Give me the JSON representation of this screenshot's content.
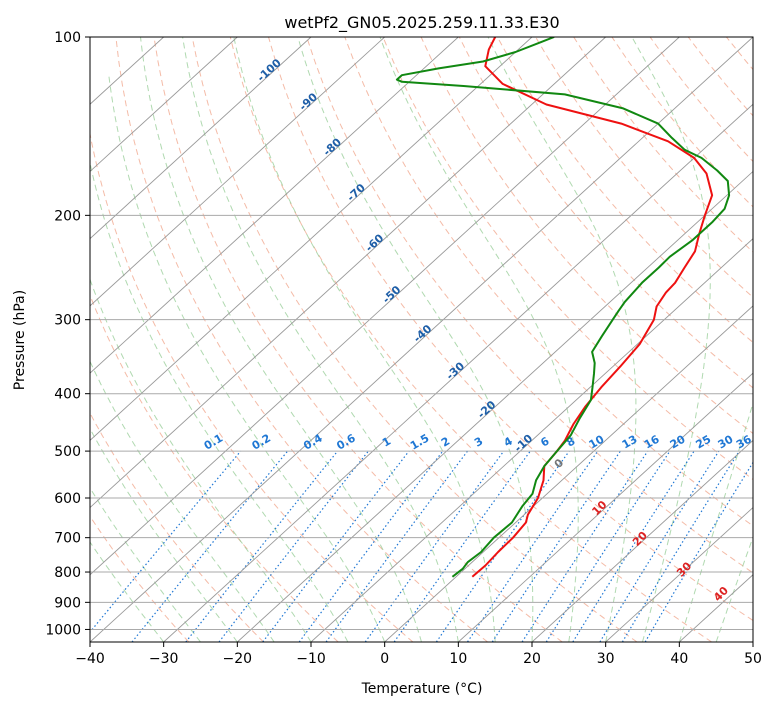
{
  "chart_data": {
    "type": "line",
    "title": "wetPf2_GN05.2025.259.11.33.E30",
    "xlabel": "Temperature (°C)",
    "ylabel": "Pressure (hPa)",
    "xlim": [
      -40,
      50
    ],
    "ylim": [
      1050,
      100
    ],
    "y_scale": "log",
    "grid": true,
    "x_ticks": [
      "−40",
      "−30",
      "−20",
      "−10",
      "0",
      "10",
      "20",
      "30",
      "40",
      "50"
    ],
    "x_tick_values": [
      -40,
      -30,
      -20,
      -10,
      0,
      10,
      20,
      30,
      40,
      50
    ],
    "y_ticks": [
      "100",
      "200",
      "300",
      "400",
      "500",
      "600",
      "700",
      "800",
      "900",
      "1000"
    ],
    "y_tick_values": [
      100,
      200,
      300,
      400,
      500,
      600,
      700,
      800,
      900,
      1000
    ],
    "series": [
      {
        "role": "temperature",
        "color": "#ee1111",
        "points": [
          [
            815,
            2.2
          ],
          [
            780,
            2.3
          ],
          [
            740,
            2.0
          ],
          [
            700,
            1.9
          ],
          [
            660,
            1.4
          ],
          [
            640,
            0.5
          ],
          [
            600,
            -0.6
          ],
          [
            560,
            -2.5
          ],
          [
            530,
            -4.5
          ],
          [
            500,
            -5.0
          ],
          [
            480,
            -5.5
          ],
          [
            450,
            -6.8
          ],
          [
            420,
            -7.8
          ],
          [
            390,
            -8.5
          ],
          [
            360,
            -9.0
          ],
          [
            330,
            -9.7
          ],
          [
            300,
            -11.4
          ],
          [
            285,
            -13.0
          ],
          [
            270,
            -13.8
          ],
          [
            260,
            -14.0
          ],
          [
            245,
            -15.0
          ],
          [
            230,
            -16.0
          ],
          [
            215,
            -18.0
          ],
          [
            200,
            -20.0
          ],
          [
            185,
            -22.0
          ],
          [
            170,
            -26.0
          ],
          [
            160,
            -30.0
          ],
          [
            150,
            -36.0
          ],
          [
            140,
            -45.0
          ],
          [
            130,
            -58.0
          ],
          [
            120,
            -67.0
          ],
          [
            112,
            -72.0
          ],
          [
            105,
            -74.0
          ],
          [
            100,
            -75.0
          ]
        ]
      },
      {
        "role": "dewpoint",
        "color": "#118811",
        "points": [
          [
            815,
            -0.5
          ],
          [
            790,
            -0.3
          ],
          [
            770,
            -0.6
          ],
          [
            740,
            -0.3
          ],
          [
            700,
            -0.7
          ],
          [
            660,
            -0.5
          ],
          [
            620,
            -1.5
          ],
          [
            590,
            -2.0
          ],
          [
            560,
            -3.5
          ],
          [
            530,
            -4.5
          ],
          [
            500,
            -5.0
          ],
          [
            470,
            -5.5
          ],
          [
            440,
            -6.8
          ],
          [
            410,
            -8.0
          ],
          [
            390,
            -9.7
          ],
          [
            370,
            -11.5
          ],
          [
            355,
            -13.0
          ],
          [
            340,
            -15.0
          ],
          [
            320,
            -16.0
          ],
          [
            300,
            -17.0
          ],
          [
            290,
            -17.5
          ],
          [
            280,
            -18.0
          ],
          [
            260,
            -18.5
          ],
          [
            245,
            -18.5
          ],
          [
            235,
            -18.6
          ],
          [
            220,
            -18.0
          ],
          [
            205,
            -18.0
          ],
          [
            195,
            -18.3
          ],
          [
            185,
            -19.7
          ],
          [
            175,
            -22.0
          ],
          [
            168,
            -25.0
          ],
          [
            160,
            -29.0
          ],
          [
            155,
            -32.5
          ],
          [
            148,
            -36.0
          ],
          [
            140,
            -40.0
          ],
          [
            132,
            -47.0
          ],
          [
            125,
            -57.0
          ],
          [
            121,
            -72.0
          ],
          [
            119,
            -81.0
          ],
          [
            118,
            -82.0
          ],
          [
            116,
            -82.0
          ],
          [
            113,
            -78.0
          ],
          [
            110,
            -73.0
          ],
          [
            106,
            -70.0
          ],
          [
            102,
            -68.0
          ],
          [
            100,
            -67.0
          ]
        ]
      }
    ],
    "reference_lines": {
      "isotherm_step": 10,
      "dry_adiabat_step": 10,
      "moist_adiabat_step": 5,
      "isotherm_color": "#999999",
      "dry_adiabat_color": "#f0a48a",
      "moist_adiabat_color": "#8fc98f",
      "mixing_ratio_color": "#1f77d4",
      "edge_curve_color": "#c8ab83"
    },
    "isotherm_labels": [
      {
        "text": "-100",
        "temp": -100,
        "p": 115
      },
      {
        "text": "-90",
        "temp": -90,
        "p": 130
      },
      {
        "text": "-80",
        "temp": -80,
        "p": 155
      },
      {
        "text": "-70",
        "temp": -70,
        "p": 185
      },
      {
        "text": "-60",
        "temp": -60,
        "p": 225
      },
      {
        "text": "-50",
        "temp": -50,
        "p": 275
      },
      {
        "text": "-40",
        "temp": -40,
        "p": 320
      },
      {
        "text": "-30",
        "temp": -30,
        "p": 370
      },
      {
        "text": "-20",
        "temp": -20,
        "p": 430
      },
      {
        "text": "-10",
        "temp": -10,
        "p": 490
      }
    ],
    "mixing_ratio_labels": [
      "0.1",
      "0.2",
      "0.4",
      "0.6",
      "1",
      "1.5",
      "2",
      "3",
      "4",
      "6",
      "8",
      "10",
      "13",
      "16",
      "20",
      "25",
      "30",
      "36"
    ],
    "mixing_ratio_label_x": [
      -23,
      -16.5,
      -9.5,
      -5,
      0.5,
      5,
      8.5,
      13,
      17,
      22,
      25.5,
      29,
      33.5,
      36.5,
      40,
      43.5,
      46.5,
      49
    ],
    "wetbulb_labels": [
      {
        "text": "0",
        "temp": 24,
        "p": 530,
        "color": "#777777"
      },
      {
        "text": "10",
        "temp": 29.5,
        "p": 630,
        "color": "#dd2222"
      },
      {
        "text": "20",
        "temp": 35,
        "p": 710,
        "color": "#dd2222"
      },
      {
        "text": "30",
        "temp": 41,
        "p": 800,
        "color": "#dd2222"
      },
      {
        "text": "40",
        "temp": 46,
        "p": 880,
        "color": "#dd2222"
      }
    ]
  }
}
